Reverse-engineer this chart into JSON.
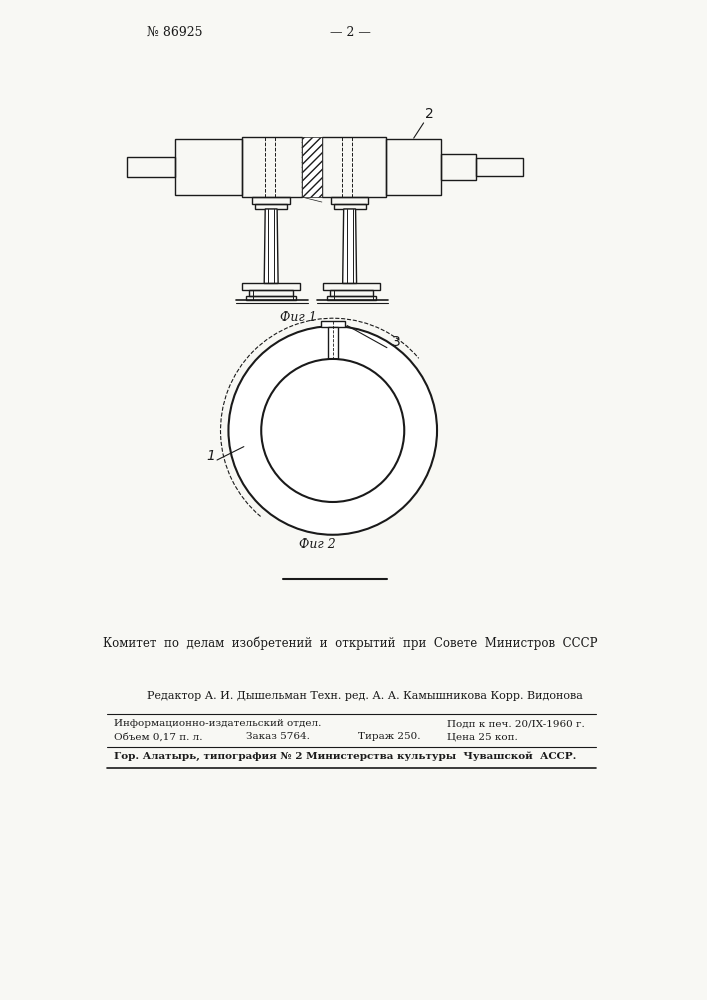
{
  "bg_color": "#ffffff",
  "page_color": "#f8f8f4",
  "line_color": "#1a1a1a",
  "patent_number": "№ 86925",
  "page_number": "— 2 —",
  "fig1_label": "Фиг 1",
  "fig2_label": "Фиг 2",
  "label_1": "1",
  "label_2": "2",
  "label_3": "3",
  "committee_text": "Комитет  по  делам  изобретений  и  открытий  при  Совете  Министров  СССР",
  "editor_text": "Редактор А. И. Дышельман Техн. ред. А. А. Камышникова Корр. Видонова",
  "info_line1a": "Информационно-издательский отдел.",
  "info_line1b": "Подп к печ. 20/IX-1960 г.",
  "info_line2a": "Объем 0,17 п. л.",
  "info_line2b": "Заказ 5764.",
  "info_line2c": "Тираж 250.",
  "info_line2d": "Цена 25 коп.",
  "info_line3": "Гор. Алатырь, типография № 2 Министерства культуры  Чувашской  АССР."
}
